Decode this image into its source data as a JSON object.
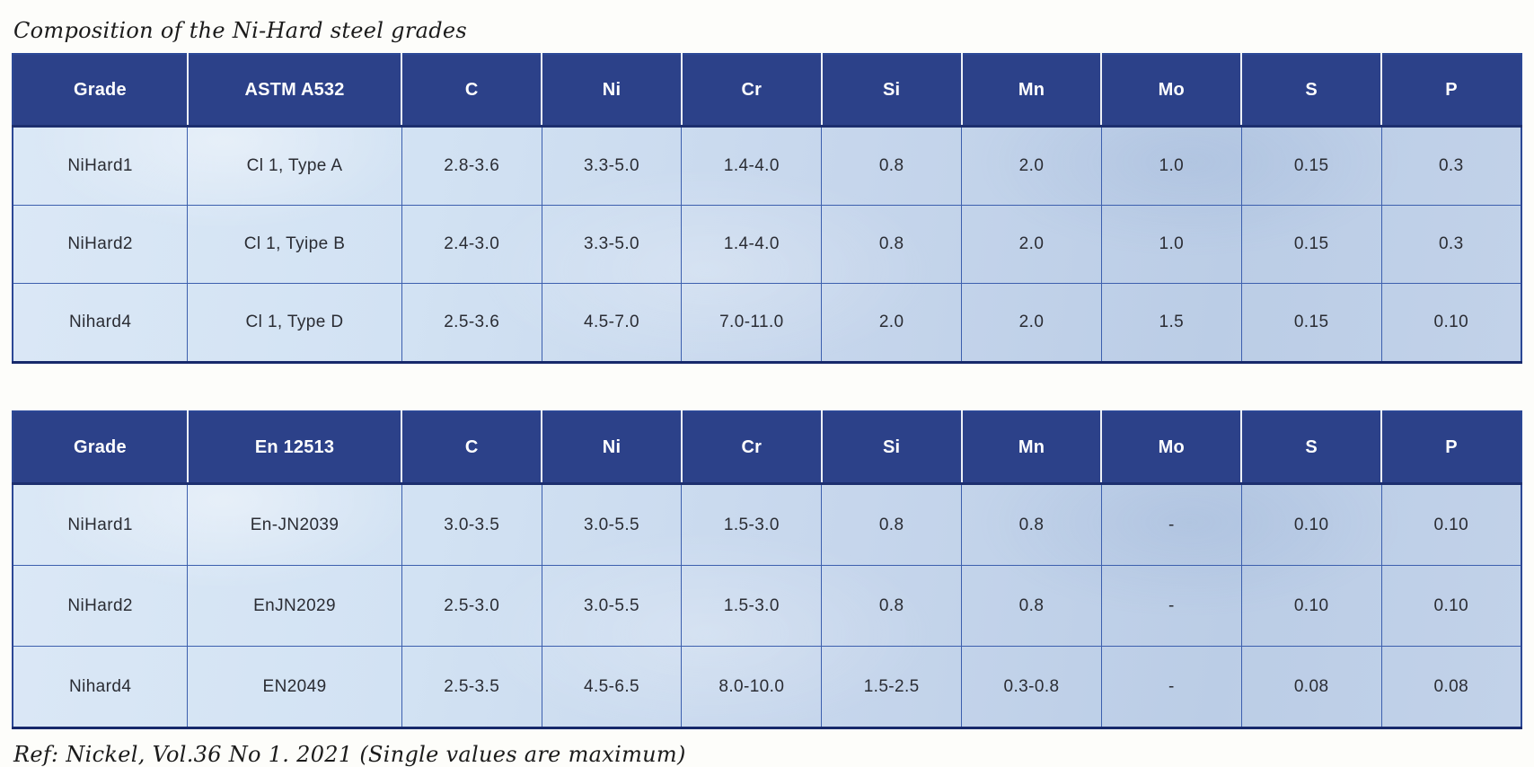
{
  "page": {
    "title": "Composition of the Ni-Hard steel grades",
    "footer": "Ref: Nickel, Vol.36 No 1. 2021 (Single values are maximum)"
  },
  "colors": {
    "header_bg": "#2c4189",
    "header_text": "#ffffff",
    "cell_bg_light": "#dbe8f6",
    "cell_bg_dark": "#bbcde6",
    "grid_line": "#3c5fae",
    "outer_border": "#2c4896",
    "bottom_border": "#17296b"
  },
  "tables": [
    {
      "name": "astm-a532",
      "columns": [
        "Grade",
        "ASTM A532",
        "C",
        "Ni",
        "Cr",
        "Si",
        "Mn",
        "Mo",
        "S",
        "P"
      ],
      "rows": [
        [
          "NiHard1",
          "Cl 1, Type A",
          "2.8-3.6",
          "3.3-5.0",
          "1.4-4.0",
          "0.8",
          "2.0",
          "1.0",
          "0.15",
          "0.3"
        ],
        [
          "NiHard2",
          "Cl 1, Tyipe B",
          "2.4-3.0",
          "3.3-5.0",
          "1.4-4.0",
          "0.8",
          "2.0",
          "1.0",
          "0.15",
          "0.3"
        ],
        [
          "Nihard4",
          "Cl 1, Type D",
          "2.5-3.6",
          "4.5-7.0",
          "7.0-11.0",
          "2.0",
          "2.0",
          "1.5",
          "0.15",
          "0.10"
        ]
      ]
    },
    {
      "name": "en-12513",
      "columns": [
        "Grade",
        "En 12513",
        "C",
        "Ni",
        "Cr",
        "Si",
        "Mn",
        "Mo",
        "S",
        "P"
      ],
      "rows": [
        [
          "NiHard1",
          "En-JN2039",
          "3.0-3.5",
          "3.0-5.5",
          "1.5-3.0",
          "0.8",
          "0.8",
          "-",
          "0.10",
          "0.10"
        ],
        [
          "NiHard2",
          "EnJN2029",
          "2.5-3.0",
          "3.0-5.5",
          "1.5-3.0",
          "0.8",
          "0.8",
          "-",
          "0.10",
          "0.10"
        ],
        [
          "Nihard4",
          "EN2049",
          "2.5-3.5",
          "4.5-6.5",
          "8.0-10.0",
          "1.5-2.5",
          "0.3-0.8",
          "-",
          "0.08",
          "0.08"
        ]
      ]
    }
  ]
}
